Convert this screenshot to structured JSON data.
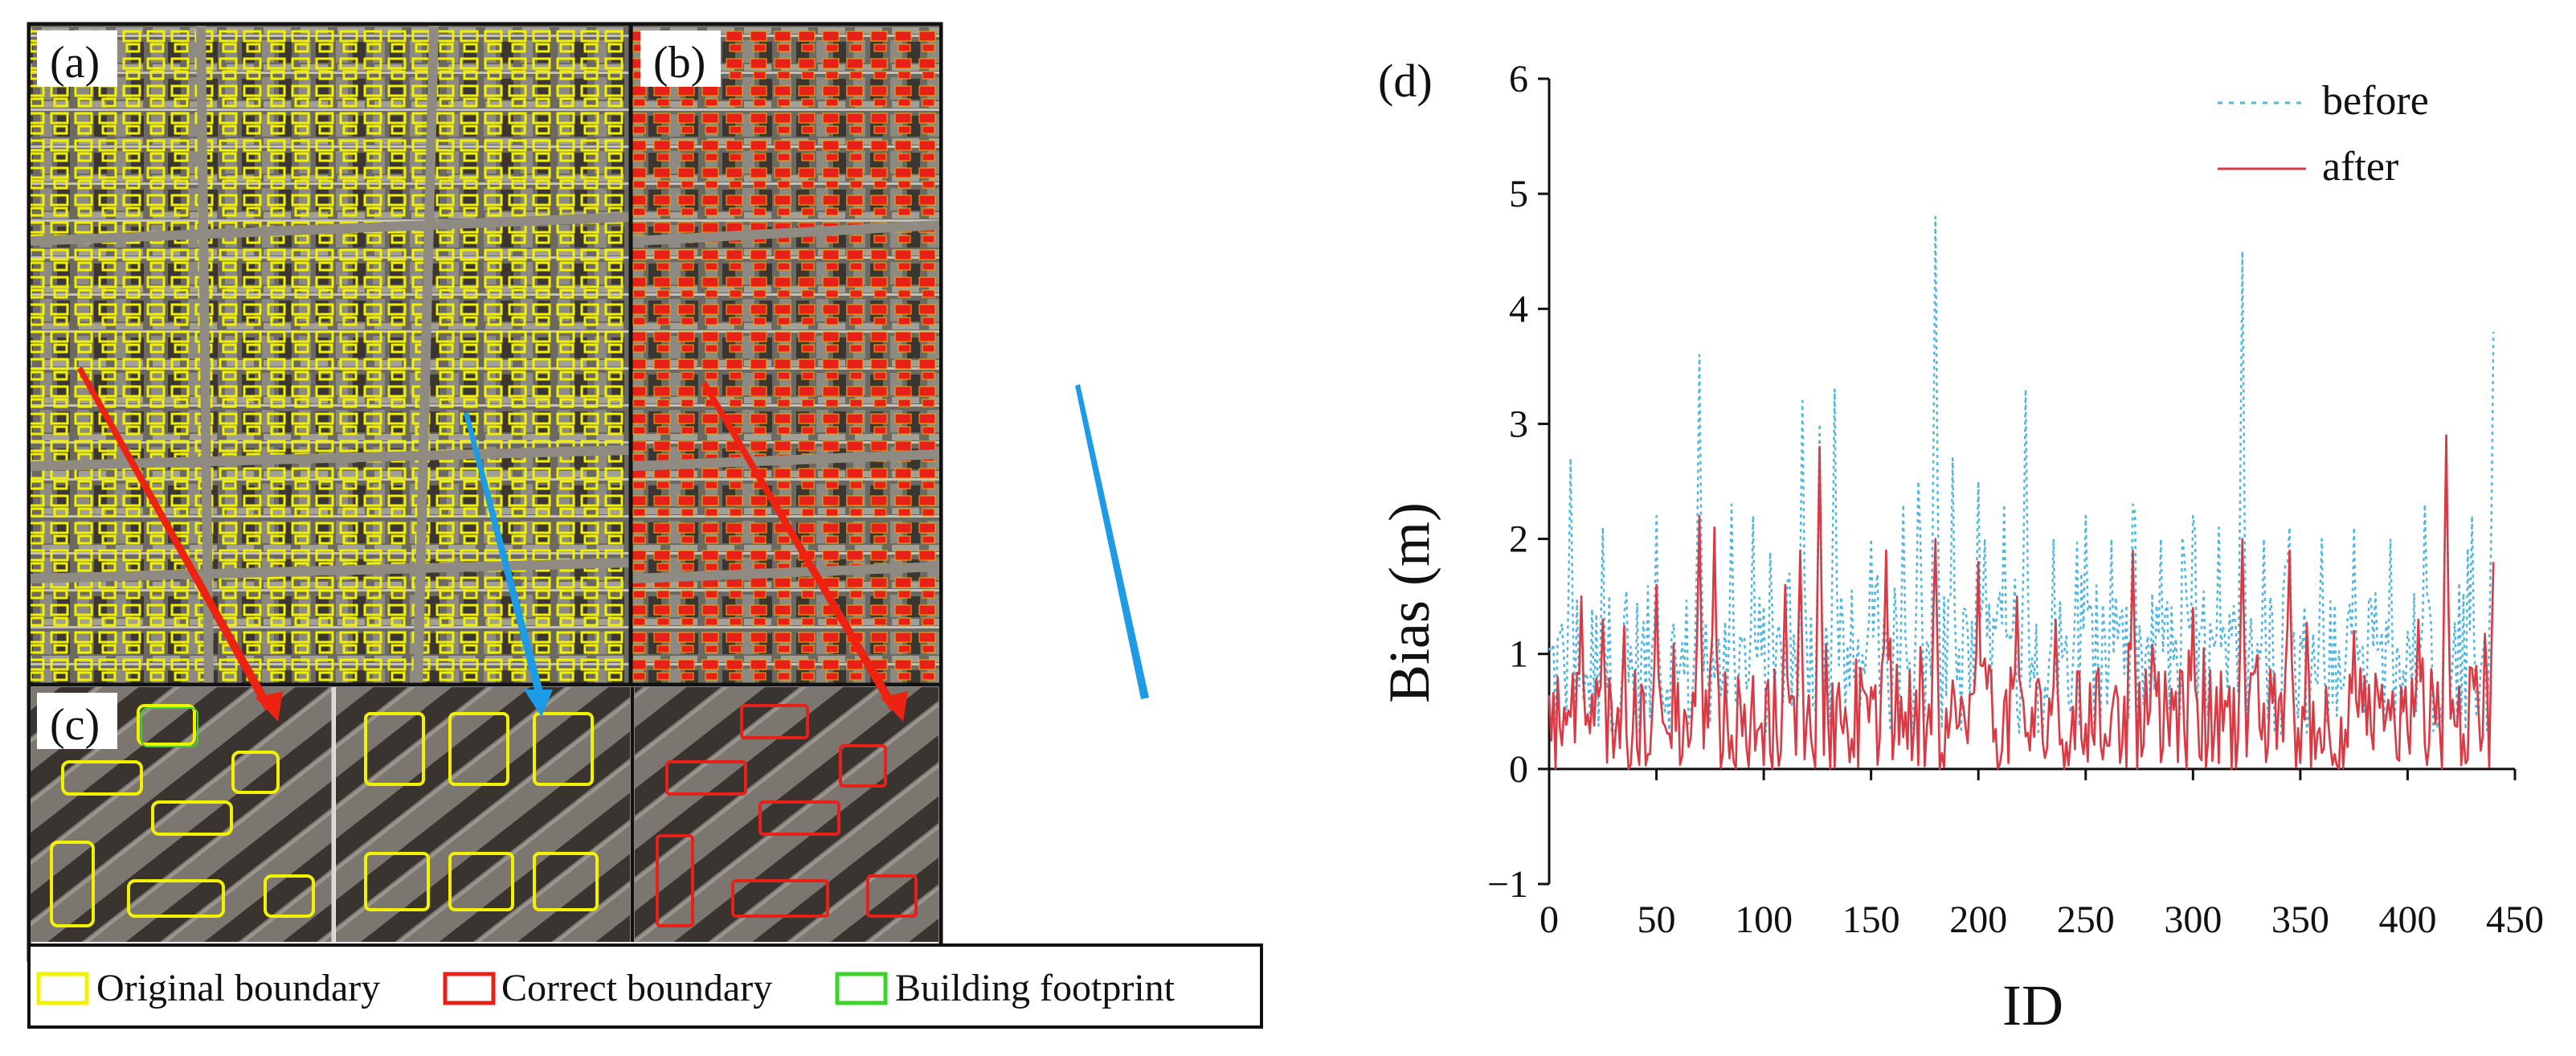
{
  "panel_labels": {
    "a": "(a)",
    "b": "(b)",
    "c": "(c)",
    "d": "(d)"
  },
  "legend_boxes": [
    {
      "label": "Original boundary",
      "color": "#f2f200"
    },
    {
      "label": "Correct boundary",
      "color": "#e8201a"
    },
    {
      "label": "Building footprint",
      "color": "#3cd42a"
    }
  ],
  "colors": {
    "original": "#f2f200",
    "correct": "#e8201a",
    "footprint": "#3cd42a",
    "arrow_red": "#ee2211",
    "arrow_blue": "#1e9be6",
    "before": "#4fb7df",
    "after": "#d93a44"
  },
  "chart_data": {
    "type": "line",
    "title": "",
    "xlabel": "ID",
    "ylabel": "Bias (m)",
    "xlim": [
      0,
      450
    ],
    "ylim": [
      -1,
      6
    ],
    "xticks": [
      "0",
      "50",
      "100",
      "150",
      "200",
      "250",
      "300",
      "350",
      "400",
      "450"
    ],
    "yticks": [
      "−1",
      "0",
      "1",
      "2",
      "3",
      "4",
      "5",
      "6"
    ],
    "legend": {
      "position": "top-right"
    },
    "n_points": 441,
    "series": [
      {
        "name": "before",
        "style": "dotted",
        "color": "#4fb7df",
        "peaks": [
          [
            10,
            2.7
          ],
          [
            25,
            2.1
          ],
          [
            50,
            2.2
          ],
          [
            70,
            3.6
          ],
          [
            85,
            2.3
          ],
          [
            95,
            2.2
          ],
          [
            118,
            3.2
          ],
          [
            126,
            3.0
          ],
          [
            133,
            3.3
          ],
          [
            150,
            2.0
          ],
          [
            165,
            2.3
          ],
          [
            172,
            2.5
          ],
          [
            180,
            4.8
          ],
          [
            188,
            2.7
          ],
          [
            200,
            2.5
          ],
          [
            212,
            2.3
          ],
          [
            222,
            3.3
          ],
          [
            235,
            2.0
          ],
          [
            250,
            2.2
          ],
          [
            262,
            2.0
          ],
          [
            272,
            2.3
          ],
          [
            285,
            2.0
          ],
          [
            300,
            2.2
          ],
          [
            312,
            2.1
          ],
          [
            323,
            4.5
          ],
          [
            333,
            2.0
          ],
          [
            345,
            2.1
          ],
          [
            360,
            2.0
          ],
          [
            375,
            2.1
          ],
          [
            392,
            2.0
          ],
          [
            408,
            2.3
          ],
          [
            418,
            2.9
          ],
          [
            430,
            2.2
          ],
          [
            440,
            3.8
          ]
        ],
        "typical_range": [
          0.3,
          1.6
        ]
      },
      {
        "name": "after",
        "style": "solid",
        "color": "#d93a44",
        "peaks": [
          [
            15,
            1.5
          ],
          [
            25,
            1.3
          ],
          [
            50,
            1.6
          ],
          [
            70,
            2.2
          ],
          [
            77,
            2.1
          ],
          [
            110,
            1.6
          ],
          [
            117,
            1.9
          ],
          [
            126,
            2.8
          ],
          [
            157,
            1.9
          ],
          [
            180,
            2.0
          ],
          [
            200,
            1.8
          ],
          [
            218,
            1.5
          ],
          [
            236,
            1.3
          ],
          [
            272,
            1.9
          ],
          [
            300,
            1.4
          ],
          [
            323,
            2.0
          ],
          [
            345,
            1.9
          ],
          [
            375,
            1.2
          ],
          [
            405,
            1.3
          ],
          [
            418,
            2.9
          ],
          [
            440,
            1.8
          ]
        ],
        "typical_range": [
          0.0,
          0.9
        ]
      }
    ]
  }
}
